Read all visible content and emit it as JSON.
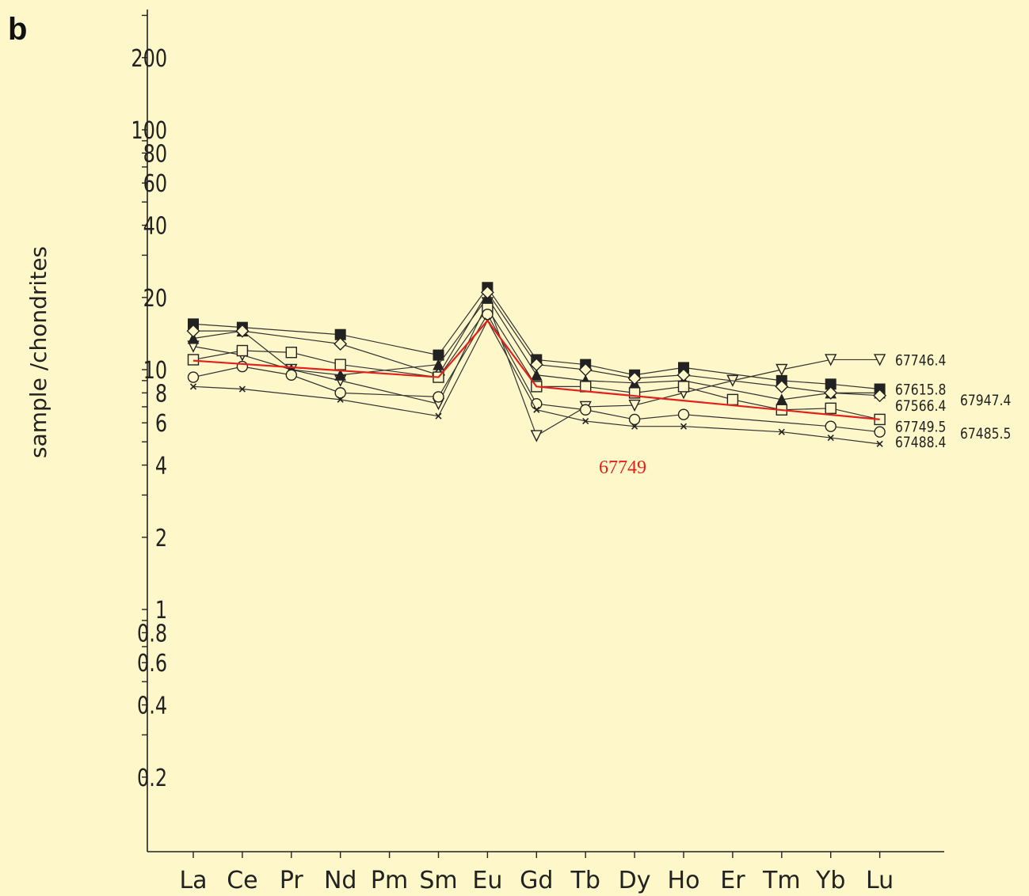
{
  "panel_letter": "b",
  "annotation": "67749",
  "chart_data": {
    "type": "line",
    "title": "",
    "ylabel": "sample /chondrites",
    "xlabel": "",
    "y_scale": "log",
    "ylim": [
      0.1,
      300
    ],
    "yticks_labeled": [
      {
        "value": 200,
        "label": "200"
      },
      {
        "value": 100,
        "label": "100"
      },
      {
        "value": 80,
        "label": "80"
      },
      {
        "value": 60,
        "label": "60"
      },
      {
        "value": 40,
        "label": "40"
      },
      {
        "value": 20,
        "label": "20"
      },
      {
        "value": 10,
        "label": "10"
      },
      {
        "value": 8,
        "label": "8"
      },
      {
        "value": 6,
        "label": "6"
      },
      {
        "value": 4,
        "label": "4"
      },
      {
        "value": 2,
        "label": "2"
      },
      {
        "value": 1,
        "label": "1"
      },
      {
        "value": 0.8,
        "label": "0.8"
      },
      {
        "value": 0.6,
        "label": "0.6"
      },
      {
        "value": 0.4,
        "label": "0.4"
      },
      {
        "value": 0.2,
        "label": "0.2"
      }
    ],
    "categories": [
      "La",
      "Ce",
      "Pr",
      "Nd",
      "Pm",
      "Sm",
      "Eu",
      "Gd",
      "Tb",
      "Dy",
      "Ho",
      "Er",
      "Tm",
      "Yb",
      "Lu"
    ],
    "grid": false,
    "series": [
      {
        "name": "67746.4",
        "marker": "triangle-down-open",
        "label_y": 11,
        "values": [
          12.5,
          11.5,
          10,
          9,
          null,
          7.2,
          19,
          5.3,
          7,
          7.1,
          8,
          9,
          10,
          11,
          11
        ]
      },
      {
        "name": "67615.8",
        "marker": "square-filled",
        "label_y": 8.3,
        "values": [
          15.5,
          15,
          null,
          14,
          null,
          11.5,
          22,
          11,
          10.5,
          9.5,
          10.2,
          null,
          9,
          8.7,
          8.3
        ]
      },
      {
        "name": "67947.4",
        "marker": "triangle-filled",
        "label_y": 7.5,
        "values": [
          13.5,
          14.5,
          10,
          9.5,
          null,
          10.5,
          20,
          9.5,
          9,
          8.8,
          9,
          null,
          7.5,
          8,
          8
        ],
        "label_x_offset": 1
      },
      {
        "name": "67566.4",
        "marker": "diamond-open",
        "label_y": 7.1,
        "values": [
          14.5,
          14.5,
          null,
          12.8,
          null,
          9.5,
          21,
          10.5,
          10,
          9.2,
          9.5,
          null,
          8.5,
          8,
          7.8
        ]
      },
      {
        "name": "67749.5",
        "marker": "square-open",
        "label_y": 5.8,
        "values": [
          11,
          12,
          11.8,
          10.5,
          null,
          9.3,
          18,
          8.5,
          8.5,
          8,
          8.5,
          7.5,
          6.8,
          6.9,
          6.2
        ]
      },
      {
        "name": "67485.5",
        "marker": "circle-open",
        "label_y": 5.45,
        "values": [
          9.3,
          10.3,
          9.5,
          8,
          null,
          7.7,
          17,
          7.2,
          6.8,
          6.2,
          6.5,
          null,
          null,
          5.8,
          5.5
        ],
        "label_x_offset": 1
      },
      {
        "name": "67488.4",
        "marker": "x",
        "label_y": 5.0,
        "values": [
          8.5,
          8.3,
          null,
          7.5,
          null,
          6.4,
          16,
          6.8,
          6.1,
          5.8,
          5.8,
          null,
          5.5,
          5.2,
          4.9
        ]
      }
    ],
    "highlight": {
      "color": "#e3211c",
      "x": [
        "La",
        "Sm",
        "Eu",
        "Gd",
        "Lu"
      ],
      "values": [
        10.9,
        9.3,
        16,
        8.5,
        6.2
      ]
    }
  }
}
